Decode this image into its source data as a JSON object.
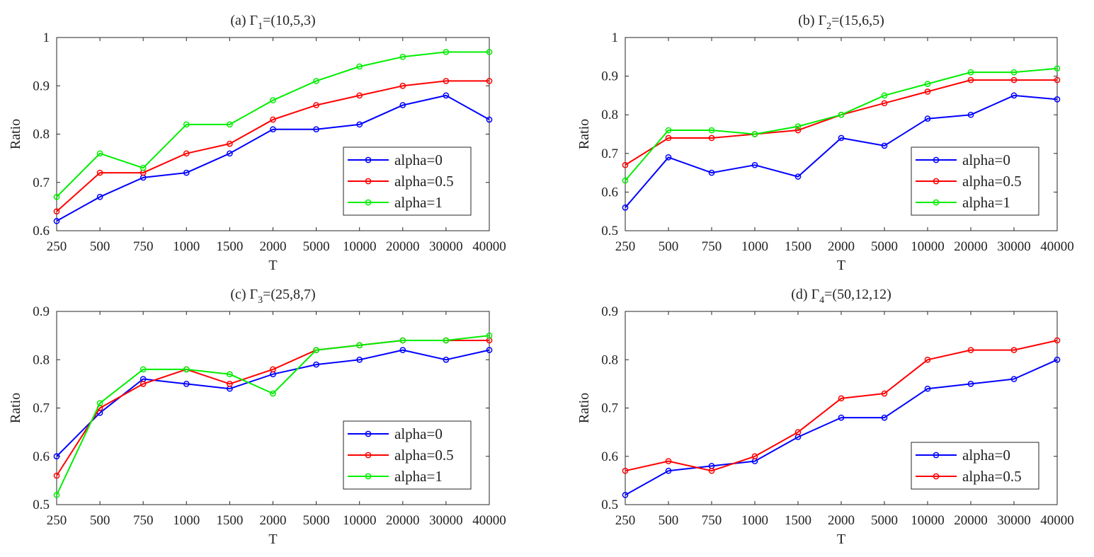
{
  "colors": {
    "alpha0": "#0000ff",
    "alpha05": "#ff0000",
    "alpha1": "#00ee00"
  },
  "chart_data": [
    {
      "type": "line",
      "title_prefix": "(a) Γ",
      "title_sub": "1",
      "title_suffix": "=(10,5,3)",
      "xlabel": "T",
      "ylabel": "Ratio",
      "categories": [
        "250",
        "500",
        "750",
        "1000",
        "1500",
        "2000",
        "5000",
        "10000",
        "20000",
        "30000",
        "40000"
      ],
      "ylim": [
        0.6,
        1.0
      ],
      "yticks": [
        "0.6",
        "0.7",
        "0.8",
        "0.9",
        "1"
      ],
      "legend_position": "bottom-right",
      "series": [
        {
          "name": "alpha=0",
          "color": "#0000ff",
          "values": [
            0.62,
            0.67,
            0.71,
            0.72,
            0.76,
            0.81,
            0.81,
            0.82,
            0.86,
            0.88,
            0.83
          ]
        },
        {
          "name": "alpha=0.5",
          "color": "#ff0000",
          "values": [
            0.64,
            0.72,
            0.72,
            0.76,
            0.78,
            0.83,
            0.86,
            0.88,
            0.9,
            0.91,
            0.91
          ]
        },
        {
          "name": "alpha=1",
          "color": "#00ee00",
          "values": [
            0.67,
            0.76,
            0.73,
            0.82,
            0.82,
            0.87,
            0.91,
            0.94,
            0.96,
            0.97,
            0.97
          ]
        }
      ]
    },
    {
      "type": "line",
      "title_prefix": "(b) Γ",
      "title_sub": "2",
      "title_suffix": "=(15,6,5)",
      "xlabel": "T",
      "ylabel": "Ratio",
      "categories": [
        "250",
        "500",
        "750",
        "1000",
        "1500",
        "2000",
        "5000",
        "10000",
        "20000",
        "30000",
        "40000"
      ],
      "ylim": [
        0.5,
        1.0
      ],
      "yticks": [
        "0.5",
        "0.6",
        "0.7",
        "0.8",
        "0.9",
        "1"
      ],
      "legend_position": "bottom-right",
      "series": [
        {
          "name": "alpha=0",
          "color": "#0000ff",
          "values": [
            0.56,
            0.69,
            0.65,
            0.67,
            0.64,
            0.74,
            0.72,
            0.79,
            0.8,
            0.85,
            0.84
          ]
        },
        {
          "name": "alpha=0.5",
          "color": "#ff0000",
          "values": [
            0.67,
            0.74,
            0.74,
            0.75,
            0.76,
            0.8,
            0.83,
            0.86,
            0.89,
            0.89,
            0.89
          ]
        },
        {
          "name": "alpha=1",
          "color": "#00ee00",
          "values": [
            0.63,
            0.76,
            0.76,
            0.75,
            0.77,
            0.8,
            0.85,
            0.88,
            0.91,
            0.91,
            0.92
          ]
        }
      ]
    },
    {
      "type": "line",
      "title_prefix": "(c) Γ",
      "title_sub": "3",
      "title_suffix": "=(25,8,7)",
      "xlabel": "T",
      "ylabel": "Ratio",
      "categories": [
        "250",
        "500",
        "750",
        "1000",
        "1500",
        "2000",
        "5000",
        "10000",
        "20000",
        "30000",
        "40000"
      ],
      "ylim": [
        0.5,
        0.9
      ],
      "yticks": [
        "0.5",
        "0.6",
        "0.7",
        "0.8",
        "0.9"
      ],
      "legend_position": "bottom-right",
      "series": [
        {
          "name": "alpha=0",
          "color": "#0000ff",
          "values": [
            0.6,
            0.69,
            0.76,
            0.75,
            0.74,
            0.77,
            0.79,
            0.8,
            0.82,
            0.8,
            0.82
          ]
        },
        {
          "name": "alpha=0.5",
          "color": "#ff0000",
          "values": [
            0.56,
            0.7,
            0.75,
            0.78,
            0.75,
            0.78,
            0.82,
            0.83,
            0.84,
            0.84,
            0.84
          ]
        },
        {
          "name": "alpha=1",
          "color": "#00ee00",
          "values": [
            0.52,
            0.71,
            0.78,
            0.78,
            0.77,
            0.73,
            0.82,
            0.83,
            0.84,
            0.84,
            0.85
          ]
        }
      ]
    },
    {
      "type": "line",
      "title_prefix": "(d) Γ",
      "title_sub": "4",
      "title_suffix": "=(50,12,12)",
      "xlabel": "T",
      "ylabel": "Ratio",
      "categories": [
        "250",
        "500",
        "750",
        "1000",
        "1500",
        "2000",
        "5000",
        "10000",
        "20000",
        "30000",
        "40000"
      ],
      "ylim": [
        0.5,
        0.9
      ],
      "yticks": [
        "0.5",
        "0.6",
        "0.7",
        "0.8",
        "0.9"
      ],
      "legend_position": "bottom-right",
      "series": [
        {
          "name": "alpha=0",
          "color": "#0000ff",
          "values": [
            0.52,
            0.57,
            0.58,
            0.59,
            0.64,
            0.68,
            0.68,
            0.74,
            0.75,
            0.76,
            0.8
          ]
        },
        {
          "name": "alpha=0.5",
          "color": "#ff0000",
          "values": [
            0.57,
            0.59,
            0.57,
            0.6,
            0.65,
            0.72,
            0.73,
            0.8,
            0.82,
            0.82,
            0.84
          ]
        }
      ]
    }
  ]
}
